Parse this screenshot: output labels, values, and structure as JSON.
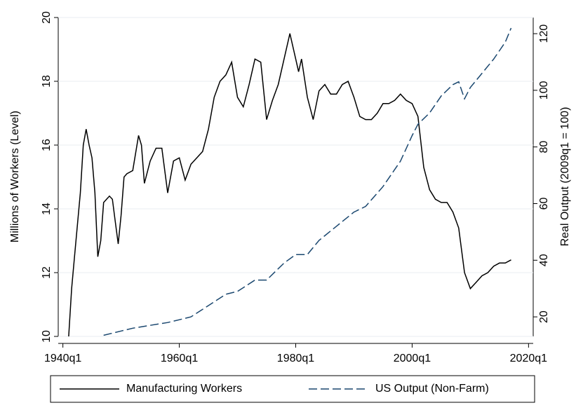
{
  "chart_data": {
    "type": "line",
    "y_label": "Millions of Workers (Level)",
    "y2_label": "Real Output (2009q1 = 100)",
    "xlim": [
      1939.2,
      2020.8
    ],
    "xticks": [
      {
        "value": 1940,
        "label": "1940q1"
      },
      {
        "value": 1960,
        "label": "1960q1"
      },
      {
        "value": 1980,
        "label": "1980q1"
      },
      {
        "value": 2000,
        "label": "2000q1"
      },
      {
        "value": 2020,
        "label": "2020q1"
      }
    ],
    "ylim": [
      10,
      20
    ],
    "yticks": [
      10,
      12,
      14,
      16,
      18,
      20
    ],
    "y2lim": [
      13.1,
      125.7
    ],
    "y2ticks": [
      20,
      40,
      60,
      80,
      100,
      120
    ],
    "grid": true,
    "series": [
      {
        "name": "Manufacturing Workers",
        "color": "#000000",
        "dash": false,
        "x": [
          1941,
          1941.5,
          1942,
          1943,
          1943.5,
          1944,
          1944.5,
          1945,
          1945.5,
          1946,
          1946.5,
          1947,
          1947.5,
          1948,
          1948.5,
          1949,
          1949.5,
          1950,
          1950.5,
          1951,
          1952,
          1953,
          1953.5,
          1954,
          1955,
          1956,
          1957,
          1958,
          1959,
          1960,
          1961,
          1962,
          1963,
          1964,
          1965,
          1966,
          1967,
          1968,
          1969,
          1970,
          1971,
          1972,
          1973,
          1974,
          1975,
          1976,
          1977,
          1978,
          1979,
          1980,
          1980.5,
          1981,
          1982,
          1983,
          1984,
          1985,
          1986,
          1987,
          1988,
          1989,
          1990,
          1991,
          1992,
          1993,
          1994,
          1995,
          1996,
          1997,
          1998,
          1999,
          2000,
          2001,
          2002,
          2003,
          2004,
          2005,
          2006,
          2007,
          2008,
          2009,
          2010,
          2011,
          2012,
          2013,
          2014,
          2015,
          2016,
          2017
        ],
        "values": [
          10.0,
          11.5,
          12.5,
          14.5,
          16.0,
          16.5,
          16.0,
          15.6,
          14.5,
          12.5,
          13.0,
          14.2,
          14.3,
          14.4,
          14.3,
          13.6,
          12.9,
          13.8,
          15.0,
          15.1,
          15.2,
          16.3,
          16.0,
          14.8,
          15.5,
          15.9,
          15.9,
          14.5,
          15.5,
          15.6,
          14.9,
          15.4,
          15.6,
          15.8,
          16.5,
          17.5,
          18.0,
          18.2,
          18.6,
          17.5,
          17.2,
          17.9,
          18.7,
          18.6,
          16.8,
          17.4,
          17.9,
          18.7,
          19.5,
          18.7,
          18.3,
          18.7,
          17.5,
          16.8,
          17.7,
          17.9,
          17.6,
          17.6,
          17.9,
          18.0,
          17.5,
          16.9,
          16.8,
          16.8,
          17.0,
          17.3,
          17.3,
          17.4,
          17.6,
          17.4,
          17.3,
          16.9,
          15.3,
          14.6,
          14.3,
          14.2,
          14.2,
          13.9,
          13.4,
          12.0,
          11.5,
          11.7,
          11.9,
          12.0,
          12.2,
          12.3,
          12.3,
          12.4
        ]
      },
      {
        "name": "US Output (Non-Farm)",
        "color": "#1a476f",
        "dash": true,
        "axis": "y2",
        "x": [
          1947,
          1950,
          1952,
          1955,
          1958,
          1960,
          1962,
          1965,
          1968,
          1970,
          1973,
          1975,
          1978,
          1980,
          1982,
          1984,
          1987,
          1990,
          1992,
          1995,
          1998,
          2000,
          2001,
          2003,
          2005,
          2007,
          2008,
          2009,
          2010,
          2012,
          2014,
          2016,
          2017
        ],
        "values": [
          13.5,
          15,
          16,
          17,
          18,
          19,
          20,
          24,
          28,
          29,
          33,
          33,
          39,
          42,
          42,
          47,
          52,
          57,
          59,
          66,
          75,
          84,
          88,
          92,
          98,
          102,
          103,
          97,
          101,
          106,
          111,
          117,
          122
        ]
      }
    ]
  }
}
